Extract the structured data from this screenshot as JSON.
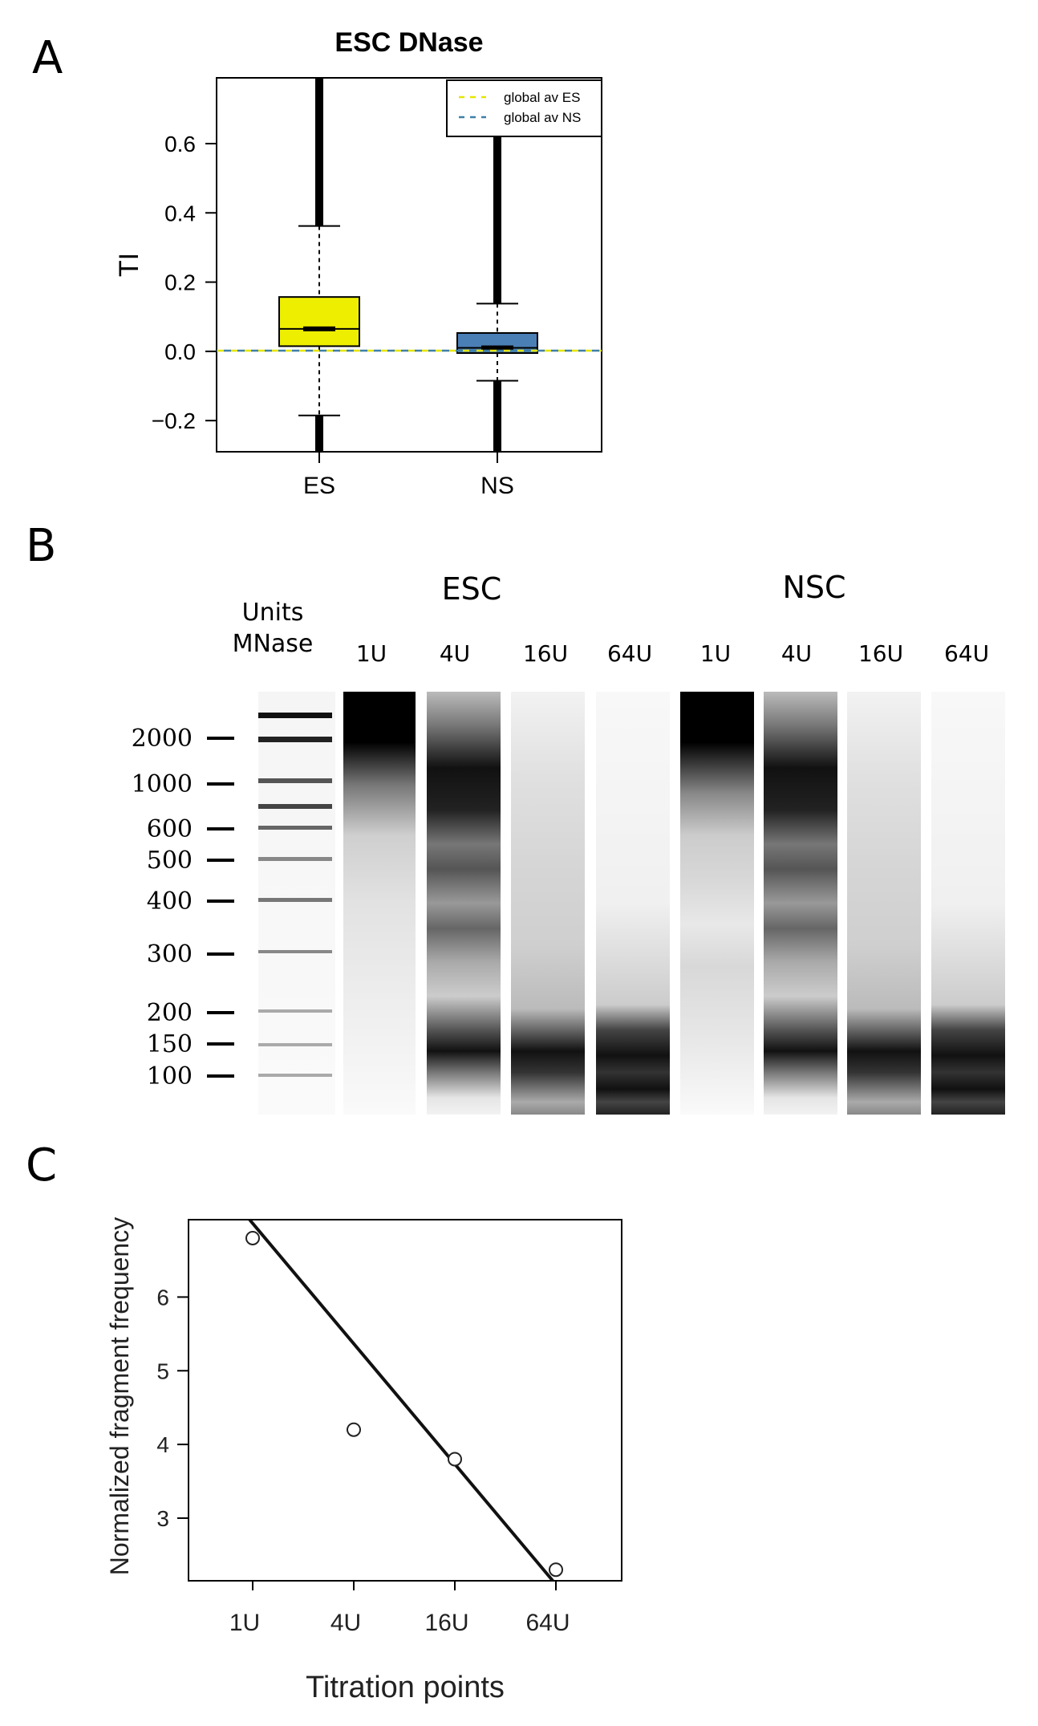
{
  "panels": {
    "a": "A",
    "b": "B",
    "c": "C"
  },
  "chart_data": [
    {
      "type": "box",
      "title": "ESC DNase",
      "ylabel": "TI",
      "xlabel": "",
      "ylim": [
        -0.29,
        0.79
      ],
      "yticks": [
        "−0.2",
        "0.0",
        "0.2",
        "0.4",
        "0.6"
      ],
      "ytick_values": [
        -0.2,
        0.0,
        0.2,
        0.4,
        0.6
      ],
      "categories": [
        "ES",
        "NS"
      ],
      "boxes": [
        {
          "name": "ES",
          "q1": 0.015,
          "median": 0.065,
          "q3": 0.157,
          "whisker_low": -0.185,
          "whisker_high": 0.362,
          "outliers_low": [
            -0.185,
            -0.29
          ],
          "outliers_high": [
            0.362,
            0.79
          ],
          "color": "#eeee00"
        },
        {
          "name": "NS",
          "q1": -0.005,
          "median": 0.01,
          "q3": 0.053,
          "whisker_low": -0.085,
          "whisker_high": 0.138,
          "outliers_low": [
            -0.085,
            -0.29
          ],
          "outliers_high": [
            0.138,
            0.65
          ],
          "color": "#4a7fb5"
        }
      ],
      "reference_lines": [
        {
          "name": "global av ES",
          "value": 0.002,
          "color": "#e6e600"
        },
        {
          "name": "global av NS",
          "value": 0.002,
          "color": "#3f7fa8"
        }
      ],
      "legend": [
        "global av ES",
        "global av NS"
      ],
      "legend_position": "top-right"
    },
    {
      "type": "gel",
      "row_labels": {
        "units": "Units",
        "mnase": "MNase"
      },
      "groups": [
        {
          "name": "ESC",
          "lanes": [
            "1U",
            "4U",
            "16U",
            "64U"
          ]
        },
        {
          "name": "NSC",
          "lanes": [
            "1U",
            "4U",
            "16U",
            "64U"
          ]
        }
      ],
      "ladder": [
        "2000",
        "1000",
        "600",
        "500",
        "400",
        "300",
        "200",
        "150",
        "100"
      ]
    },
    {
      "type": "scatter",
      "xlabel": "Titration points",
      "ylabel": "Normalized fragment frequency",
      "categories": [
        "1U",
        "4U",
        "16U",
        "64U"
      ],
      "values": [
        6.8,
        4.2,
        3.8,
        2.3
      ],
      "fit_line": {
        "y_at_first": 7.0,
        "y_at_last": 2.1
      },
      "ylim": [
        2.15,
        7.05
      ],
      "yticks": [
        "3",
        "4",
        "5",
        "6"
      ],
      "ytick_values": [
        3,
        4,
        5,
        6
      ]
    }
  ]
}
